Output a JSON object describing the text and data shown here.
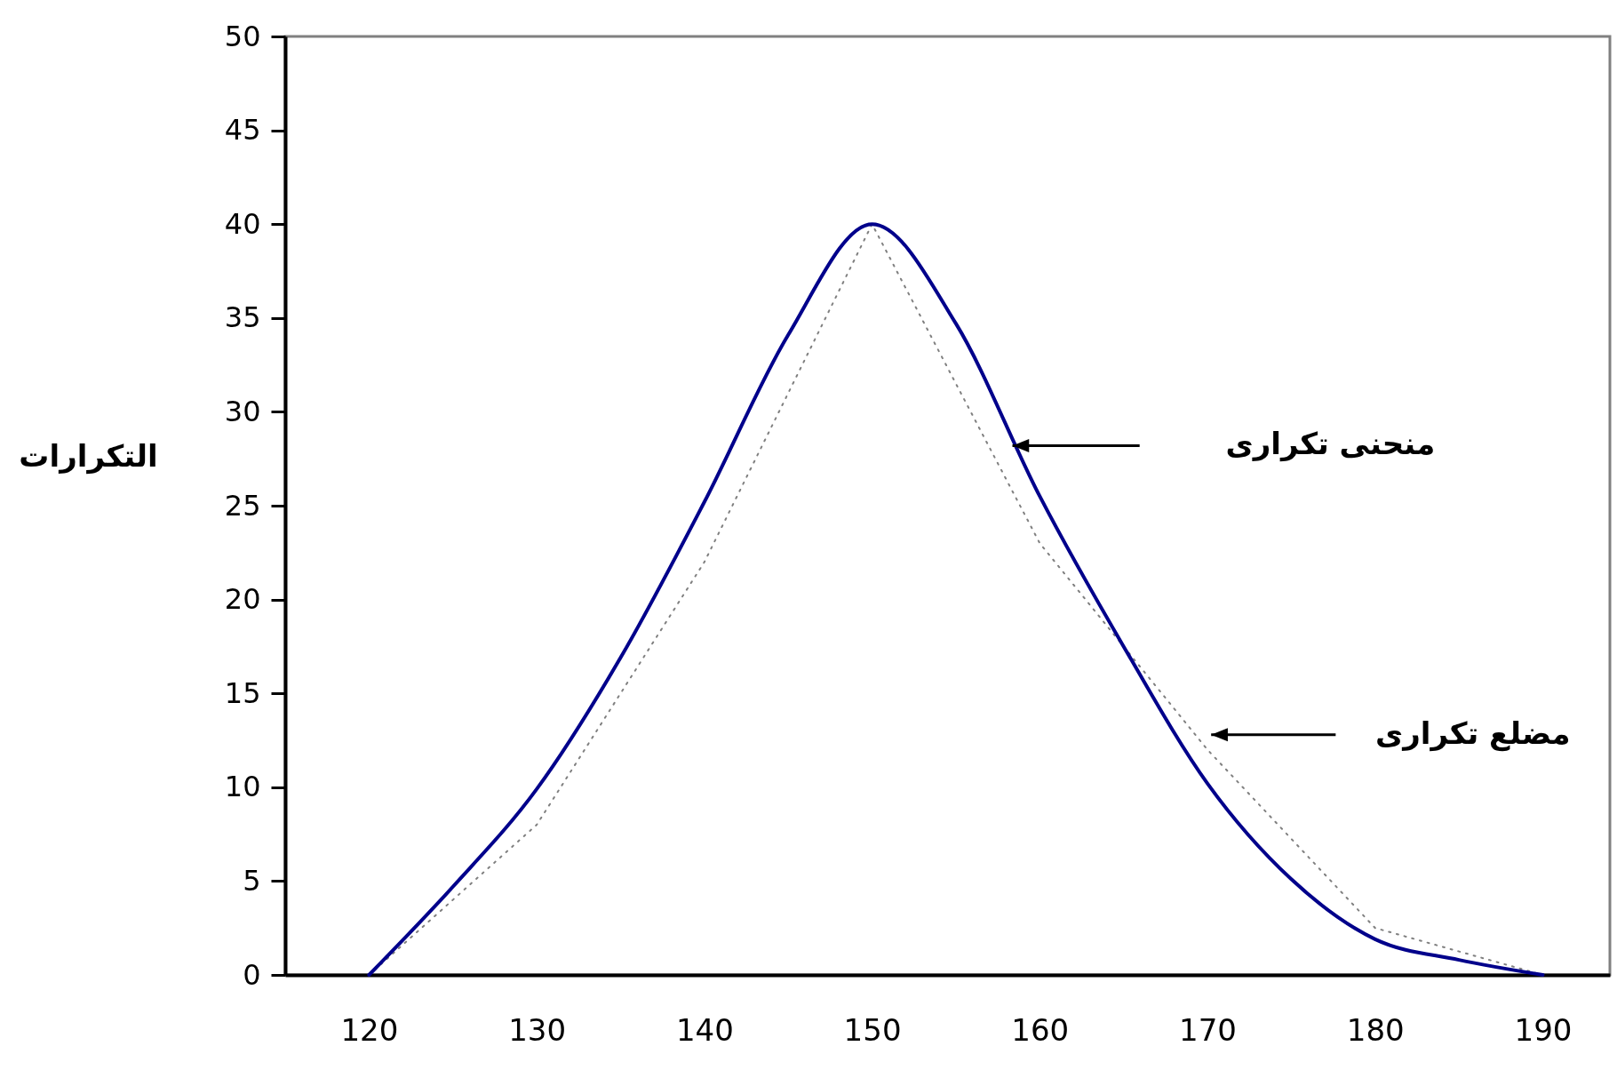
{
  "chart_data": {
    "type": "line",
    "ylabel": "التكرارات",
    "xlim": [
      115,
      194
    ],
    "xticks": [
      120,
      130,
      140,
      150,
      160,
      170,
      180,
      190
    ],
    "ylim": [
      0,
      50
    ],
    "yticks": [
      0,
      5,
      10,
      15,
      20,
      25,
      30,
      35,
      40,
      45,
      50
    ],
    "grid": false,
    "legend": false,
    "series": [
      {
        "color": "#808080",
        "line_style": "dotted",
        "x": [
          120,
          130,
          140,
          150,
          160,
          170,
          180,
          190
        ],
        "values": [
          0,
          8,
          22,
          40,
          23,
          12,
          2.5,
          0
        ]
      },
      {
        "color": "#00008b",
        "line_style": "solid",
        "x": [
          120,
          125,
          130,
          135,
          140,
          145,
          150,
          155,
          160,
          165,
          170,
          175,
          180,
          185,
          190
        ],
        "values": [
          0,
          4.7,
          9.9,
          16.9,
          25.2,
          34.1,
          40,
          34.7,
          25.5,
          17.5,
          10.2,
          5.1,
          1.9,
          0.8,
          0
        ]
      }
    ],
    "annotations": [
      "منحنى تكرارى",
      "مضلع تكرارى"
    ]
  }
}
